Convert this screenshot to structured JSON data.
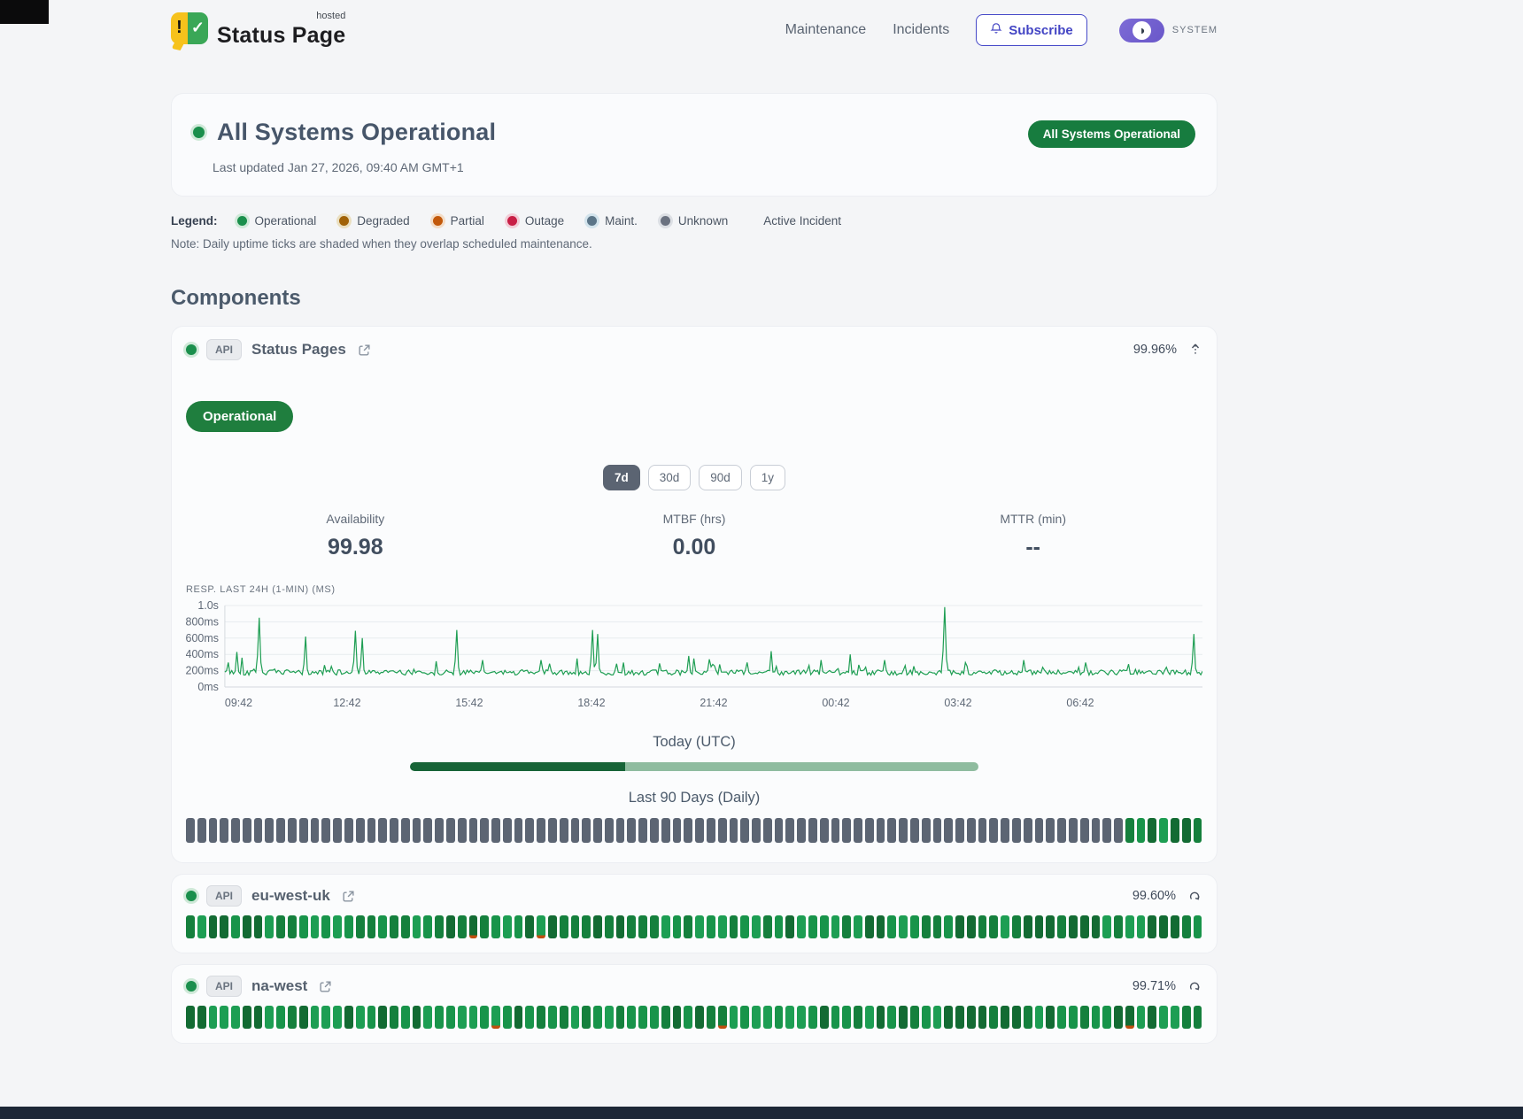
{
  "header": {
    "brand": {
      "title": "Status Page",
      "superscript": "hosted"
    },
    "nav": [
      {
        "label": "Maintenance"
      },
      {
        "label": "Incidents"
      }
    ],
    "subscribe": {
      "label": "Subscribe"
    },
    "theme": {
      "label": "SYSTEM",
      "mode_glyph": "◑"
    }
  },
  "hero": {
    "title": "All Systems Operational",
    "last_updated": "Last updated Jan 27, 2026, 09:40 AM GMT+1",
    "badge": "All Systems Operational"
  },
  "legend": {
    "label": "Legend:",
    "items": [
      {
        "label": "Operational",
        "color": "#1a8f4c",
        "halo": "#cfe9d8"
      },
      {
        "label": "Degraded",
        "color": "#a16207",
        "halo": "#eadfc0"
      },
      {
        "label": "Partial",
        "color": "#c2580a",
        "halo": "#f3dcc6"
      },
      {
        "label": "Outage",
        "color": "#c81e45",
        "halo": "#f2ccd6"
      },
      {
        "label": "Maint.",
        "color": "#5b7588",
        "halo": "#d2e3ec"
      },
      {
        "label": "Unknown",
        "color": "#6b7280",
        "halo": "#dcdfe4"
      }
    ],
    "active_incident": "Active Incident",
    "note": "Note: Daily uptime ticks are shaded when they overlap scheduled maintenance."
  },
  "components": {
    "heading": "Components",
    "items": [
      {
        "badge": "API",
        "name": "Status Pages",
        "uptime": "99.96%",
        "status_badge": "Operational",
        "ranges": [
          "7d",
          "30d",
          "90d",
          "1y"
        ],
        "active_range": "7d",
        "stats": [
          {
            "label": "Availability",
            "value": "99.98"
          },
          {
            "label": "MTBF (hrs)",
            "value": "0.00"
          },
          {
            "label": "MTTR (min)",
            "value": "--"
          }
        ],
        "today": {
          "label": "Today (UTC)",
          "fill_pct": 37.8
        },
        "history_label": "Last 90 Days (Daily)",
        "history": {
          "ticks": 90,
          "style": "gray-with-green-tail",
          "green_tail": 7,
          "red_marks": []
        }
      },
      {
        "badge": "API",
        "name": "eu-west-uk",
        "uptime": "99.60%",
        "history": {
          "ticks": 90,
          "style": "green",
          "red_marks": [
            25,
            31
          ]
        }
      },
      {
        "badge": "API",
        "name": "na-west",
        "uptime": "99.71%",
        "history": {
          "ticks": 90,
          "style": "green",
          "red_marks": [
            27,
            47,
            83
          ]
        }
      }
    ]
  },
  "chart_data": {
    "type": "line",
    "title": "RESP. LAST 24H (1-MIN) (MS)",
    "x_ticks": [
      "09:42",
      "12:42",
      "15:42",
      "18:42",
      "21:42",
      "00:42",
      "03:42",
      "06:42"
    ],
    "y_ticks": [
      "0ms",
      "200ms",
      "400ms",
      "600ms",
      "800ms",
      "1.0s"
    ],
    "y_tick_ms": [
      0,
      200,
      400,
      600,
      800,
      1000
    ],
    "y_max_ms": 1000,
    "baseline_ms": [
      145,
      210
    ],
    "line_color": "#1e9e53",
    "grid": true,
    "spikes": [
      {
        "f": 0.004,
        "v": 300
      },
      {
        "f": 0.012,
        "v": 430
      },
      {
        "f": 0.018,
        "v": 360
      },
      {
        "f": 0.036,
        "v": 850
      },
      {
        "f": 0.083,
        "v": 620
      },
      {
        "f": 0.134,
        "v": 690
      },
      {
        "f": 0.141,
        "v": 600
      },
      {
        "f": 0.237,
        "v": 700
      },
      {
        "f": 0.263,
        "v": 330
      },
      {
        "f": 0.323,
        "v": 330
      },
      {
        "f": 0.36,
        "v": 350
      },
      {
        "f": 0.376,
        "v": 700
      },
      {
        "f": 0.382,
        "v": 650
      },
      {
        "f": 0.407,
        "v": 300
      },
      {
        "f": 0.474,
        "v": 380
      },
      {
        "f": 0.48,
        "v": 350
      },
      {
        "f": 0.495,
        "v": 340
      },
      {
        "f": 0.558,
        "v": 440
      },
      {
        "f": 0.609,
        "v": 330
      },
      {
        "f": 0.64,
        "v": 400
      },
      {
        "f": 0.675,
        "v": 330
      },
      {
        "f": 0.737,
        "v": 980
      },
      {
        "f": 0.758,
        "v": 300
      },
      {
        "f": 0.818,
        "v": 330
      },
      {
        "f": 0.88,
        "v": 300
      },
      {
        "f": 0.925,
        "v": 280
      },
      {
        "f": 0.991,
        "v": 650
      }
    ]
  },
  "colors": {
    "tick_gray": "#5c6573",
    "tick_greens": [
      "#15803d",
      "#18944a",
      "#136b33",
      "#1d9e53"
    ],
    "tick_red_mark": "#c04e0e",
    "progress_fill": "#176437",
    "progress_track": "#8fbc9f",
    "accent_indigo": "#4649c8",
    "status_green": "#177c3f"
  }
}
